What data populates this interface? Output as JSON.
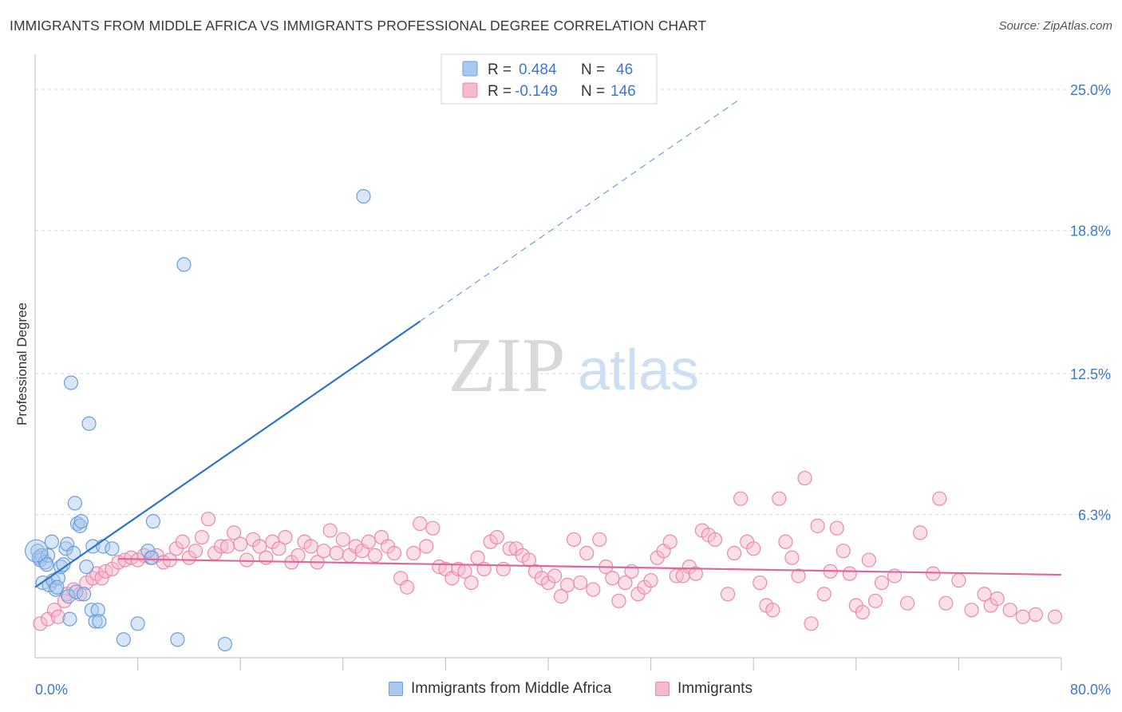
{
  "title": "IMMIGRANTS FROM MIDDLE AFRICA VS IMMIGRANTS PROFESSIONAL DEGREE CORRELATION CHART",
  "source": "Source: ZipAtlas.com",
  "watermark": {
    "zip": "ZIP",
    "atlas": "atlas"
  },
  "legend_top": {
    "rows": [
      {
        "r_label": "R =",
        "r_value": "0.484",
        "n_label": "N =",
        "n_value": "46"
      },
      {
        "r_label": "R =",
        "r_value": "-0.149",
        "n_label": "N =",
        "n_value": "146"
      }
    ]
  },
  "legend_bottom": {
    "series1": "Immigrants from Middle Africa",
    "series2": "Immigrants"
  },
  "colors": {
    "blue_fill": "#a9c8f0",
    "blue_stroke": "#6a9fd8",
    "blue_line": "#2f72cc",
    "pink_fill": "#f6b8cc",
    "pink_stroke": "#e98aa8",
    "pink_line": "#e0679a",
    "tick_label": "#3d78c9",
    "grid": "#d9d9d9"
  },
  "chart_data": {
    "type": "scatter",
    "title": "IMMIGRANTS FROM MIDDLE AFRICA VS IMMIGRANTS PROFESSIONAL DEGREE CORRELATION CHART",
    "xlabel": "",
    "ylabel": "Professional Degree",
    "xlim": [
      0,
      80
    ],
    "ylim": [
      0,
      26.2
    ],
    "x_tick_labels": [
      "0.0%",
      "80.0%"
    ],
    "y_ticks": [
      6.3,
      12.5,
      18.8,
      25.0
    ],
    "y_tick_labels": [
      "6.3%",
      "12.5%",
      "18.8%",
      "25.0%"
    ],
    "x_minor_ticks": [
      8,
      16,
      24,
      32,
      40,
      48,
      56,
      64,
      72,
      80
    ],
    "series": [
      {
        "name": "Immigrants from Middle Africa",
        "color": "blue",
        "R": 0.484,
        "N": 46,
        "trend": {
          "x0": 0,
          "y0": 3.1,
          "x1": 30,
          "y1": 14.8,
          "dash_x1": 55,
          "dash_y1": 24.6
        },
        "points": [
          [
            0.2,
            4.7
          ],
          [
            0.3,
            4.4
          ],
          [
            0.4,
            4.3
          ],
          [
            0.5,
            4.5
          ],
          [
            0.6,
            3.3
          ],
          [
            0.8,
            4.2
          ],
          [
            1.0,
            4.5
          ],
          [
            1.1,
            3.2
          ],
          [
            1.3,
            5.1
          ],
          [
            1.4,
            3.4
          ],
          [
            1.6,
            3.0
          ],
          [
            1.8,
            3.5
          ],
          [
            2.0,
            4.0
          ],
          [
            2.2,
            4.1
          ],
          [
            2.4,
            4.8
          ],
          [
            2.5,
            5.0
          ],
          [
            2.6,
            2.7
          ],
          [
            2.7,
            1.7
          ],
          [
            2.8,
            12.1
          ],
          [
            3.0,
            4.6
          ],
          [
            3.1,
            6.8
          ],
          [
            3.2,
            2.9
          ],
          [
            3.3,
            5.9
          ],
          [
            3.5,
            5.8
          ],
          [
            3.6,
            6.0
          ],
          [
            3.8,
            2.8
          ],
          [
            4.0,
            4.0
          ],
          [
            4.2,
            10.3
          ],
          [
            4.4,
            2.1
          ],
          [
            4.5,
            4.9
          ],
          [
            4.7,
            1.6
          ],
          [
            4.9,
            2.1
          ],
          [
            5.0,
            1.6
          ],
          [
            5.3,
            4.9
          ],
          [
            6.0,
            4.8
          ],
          [
            6.9,
            0.8
          ],
          [
            8.0,
            1.5
          ],
          [
            8.8,
            4.7
          ],
          [
            9.1,
            4.4
          ],
          [
            9.2,
            6.0
          ],
          [
            11.1,
            0.8
          ],
          [
            11.6,
            17.3
          ],
          [
            14.8,
            0.6
          ],
          [
            25.6,
            20.3
          ],
          [
            0.9,
            4.1
          ],
          [
            1.7,
            3.1
          ]
        ]
      },
      {
        "name": "Immigrants",
        "color": "pink",
        "R": -0.149,
        "N": 146,
        "trend": {
          "x0": 6.5,
          "y0": 4.35,
          "x1": 80,
          "y1": 3.65
        },
        "points": [
          [
            0.4,
            1.5
          ],
          [
            1.0,
            1.7
          ],
          [
            1.5,
            2.1
          ],
          [
            1.8,
            1.8
          ],
          [
            2.3,
            2.5
          ],
          [
            2.5,
            2.8
          ],
          [
            3.0,
            3.0
          ],
          [
            3.5,
            2.8
          ],
          [
            4.0,
            3.3
          ],
          [
            4.5,
            3.5
          ],
          [
            4.8,
            3.7
          ],
          [
            5.2,
            3.5
          ],
          [
            5.5,
            3.8
          ],
          [
            6.0,
            3.9
          ],
          [
            6.5,
            4.2
          ],
          [
            7.0,
            4.3
          ],
          [
            7.5,
            4.4
          ],
          [
            8.0,
            4.3
          ],
          [
            8.5,
            4.5
          ],
          [
            9.0,
            4.4
          ],
          [
            9.5,
            4.5
          ],
          [
            10.0,
            4.2
          ],
          [
            10.5,
            4.3
          ],
          [
            11.0,
            4.8
          ],
          [
            11.5,
            5.1
          ],
          [
            12.0,
            4.4
          ],
          [
            12.5,
            4.7
          ],
          [
            13.0,
            5.3
          ],
          [
            13.5,
            6.1
          ],
          [
            14.0,
            4.6
          ],
          [
            14.5,
            4.9
          ],
          [
            15.0,
            4.9
          ],
          [
            15.5,
            5.5
          ],
          [
            16.0,
            5.0
          ],
          [
            16.5,
            4.3
          ],
          [
            17.0,
            5.2
          ],
          [
            17.5,
            4.9
          ],
          [
            18.0,
            4.4
          ],
          [
            18.5,
            5.1
          ],
          [
            19.0,
            4.8
          ],
          [
            19.5,
            5.3
          ],
          [
            20.0,
            4.2
          ],
          [
            20.5,
            4.5
          ],
          [
            21.0,
            5.1
          ],
          [
            21.5,
            4.9
          ],
          [
            22.0,
            4.2
          ],
          [
            22.5,
            4.7
          ],
          [
            23.0,
            5.6
          ],
          [
            23.5,
            4.6
          ],
          [
            24.0,
            5.2
          ],
          [
            24.5,
            4.5
          ],
          [
            25.0,
            4.9
          ],
          [
            25.5,
            4.7
          ],
          [
            26.0,
            5.1
          ],
          [
            26.5,
            4.5
          ],
          [
            27.0,
            5.3
          ],
          [
            27.5,
            4.9
          ],
          [
            28.0,
            4.6
          ],
          [
            28.5,
            3.5
          ],
          [
            29.0,
            3.1
          ],
          [
            29.5,
            4.6
          ],
          [
            30.0,
            5.9
          ],
          [
            30.5,
            4.9
          ],
          [
            31.0,
            5.7
          ],
          [
            31.5,
            4.0
          ],
          [
            32.0,
            3.9
          ],
          [
            32.5,
            3.5
          ],
          [
            33.0,
            3.9
          ],
          [
            33.5,
            3.8
          ],
          [
            34.0,
            3.3
          ],
          [
            34.5,
            4.4
          ],
          [
            35.0,
            3.9
          ],
          [
            35.5,
            5.1
          ],
          [
            36.0,
            5.3
          ],
          [
            36.5,
            3.9
          ],
          [
            37.0,
            4.8
          ],
          [
            37.5,
            4.8
          ],
          [
            38.0,
            4.5
          ],
          [
            38.5,
            4.3
          ],
          [
            39.0,
            3.8
          ],
          [
            39.5,
            3.5
          ],
          [
            40.0,
            3.3
          ],
          [
            40.5,
            3.6
          ],
          [
            41.0,
            2.7
          ],
          [
            41.5,
            3.2
          ],
          [
            42.0,
            5.2
          ],
          [
            42.5,
            3.3
          ],
          [
            43.0,
            4.6
          ],
          [
            43.5,
            3.0
          ],
          [
            44.0,
            5.2
          ],
          [
            44.5,
            4.0
          ],
          [
            45.0,
            3.5
          ],
          [
            45.5,
            2.5
          ],
          [
            46.0,
            3.3
          ],
          [
            46.5,
            3.8
          ],
          [
            47.0,
            2.8
          ],
          [
            47.5,
            3.1
          ],
          [
            48.0,
            3.4
          ],
          [
            48.5,
            4.4
          ],
          [
            49.0,
            4.7
          ],
          [
            49.5,
            5.1
          ],
          [
            50.0,
            3.6
          ],
          [
            50.5,
            3.6
          ],
          [
            51.0,
            4.0
          ],
          [
            51.5,
            3.7
          ],
          [
            52.0,
            5.6
          ],
          [
            52.5,
            5.4
          ],
          [
            53.0,
            5.2
          ],
          [
            54.0,
            2.8
          ],
          [
            54.5,
            4.6
          ],
          [
            55.0,
            7.0
          ],
          [
            55.5,
            5.1
          ],
          [
            56.0,
            4.8
          ],
          [
            56.5,
            3.3
          ],
          [
            57.0,
            2.3
          ],
          [
            57.5,
            2.1
          ],
          [
            58.0,
            7.0
          ],
          [
            58.5,
            5.1
          ],
          [
            59.0,
            4.4
          ],
          [
            59.5,
            3.6
          ],
          [
            60.0,
            7.9
          ],
          [
            60.5,
            1.5
          ],
          [
            61.0,
            5.8
          ],
          [
            61.5,
            2.8
          ],
          [
            62.0,
            3.8
          ],
          [
            62.5,
            5.7
          ],
          [
            63.0,
            4.7
          ],
          [
            63.5,
            3.7
          ],
          [
            64.0,
            2.3
          ],
          [
            64.5,
            2.0
          ],
          [
            65.0,
            4.3
          ],
          [
            65.5,
            2.5
          ],
          [
            66.0,
            3.3
          ],
          [
            67.0,
            3.6
          ],
          [
            68.0,
            2.4
          ],
          [
            69.0,
            5.5
          ],
          [
            70.0,
            3.7
          ],
          [
            70.5,
            7.0
          ],
          [
            71.0,
            2.4
          ],
          [
            72.0,
            3.4
          ],
          [
            73.0,
            2.1
          ],
          [
            74.0,
            2.8
          ],
          [
            74.5,
            2.3
          ],
          [
            75.0,
            2.6
          ],
          [
            76.0,
            2.1
          ],
          [
            77.0,
            1.8
          ],
          [
            78.0,
            1.9
          ],
          [
            79.5,
            1.8
          ]
        ]
      }
    ]
  }
}
